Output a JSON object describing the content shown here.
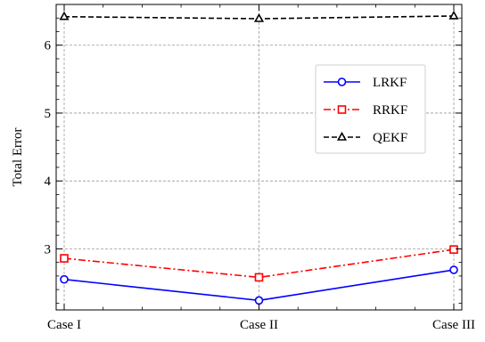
{
  "chart_data": {
    "type": "line",
    "categories": [
      "Case I",
      "Case II",
      "Case III"
    ],
    "ylabel": "Total Error",
    "ylim": [
      2.1,
      6.6
    ],
    "yticks": [
      3,
      4,
      5,
      6
    ],
    "grid": true,
    "legend": "center-right",
    "series": [
      {
        "name": "LRKF",
        "values": [
          2.55,
          2.24,
          2.69
        ],
        "color": "#0000ff",
        "marker": "circle",
        "dash": "solid"
      },
      {
        "name": "RRKF",
        "values": [
          2.86,
          2.58,
          2.99
        ],
        "color": "#ff0000",
        "marker": "square",
        "dash": "dashdot"
      },
      {
        "name": "QEKF",
        "values": [
          6.42,
          6.39,
          6.43
        ],
        "color": "#000000",
        "marker": "triangle",
        "dash": "dashed"
      }
    ]
  }
}
